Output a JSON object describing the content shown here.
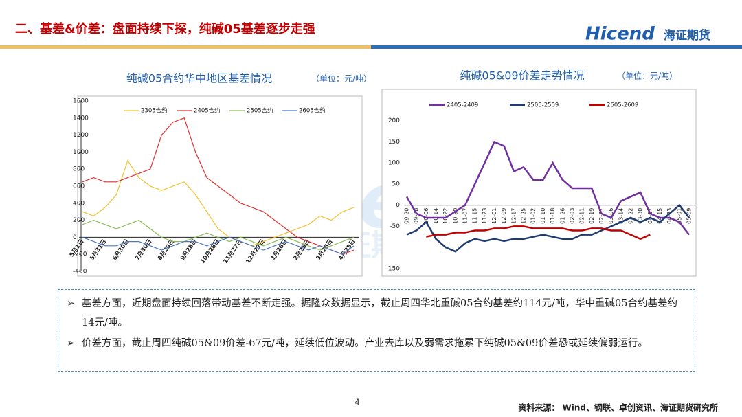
{
  "header": {
    "title": "二、基差&价差：盘面持续下探，纯碱05基差逐步走强",
    "logo": "Hicend",
    "logo_cn": "海证期货"
  },
  "chart_data": [
    {
      "type": "line",
      "title": "纯碱05合约华中地区基差情况",
      "unit": "（单位：元/吨）",
      "categories": [
        "5月1日",
        null,
        "5月31日",
        null,
        "6月30日",
        null,
        "7月30日",
        null,
        "8月29日",
        null,
        "9月28日",
        null,
        "10月28日",
        null,
        "11月27日",
        null,
        "12月27日",
        null,
        "1月26日",
        null,
        "2月25日",
        null,
        "3月26日",
        null,
        "4月25日"
      ],
      "ylim": [
        -400,
        1600
      ],
      "yticks": [
        -400,
        -200,
        0,
        200,
        400,
        600,
        800,
        1000,
        1200,
        1400,
        1600
      ],
      "series": [
        {
          "name": "2305合约",
          "color": "#f2c12e",
          "values": [
            300,
            250,
            350,
            500,
            900,
            700,
            600,
            550,
            600,
            650,
            500,
            300,
            100,
            0,
            -50,
            -100,
            -50,
            0,
            50,
            100,
            150,
            250,
            200,
            300,
            350
          ]
        },
        {
          "name": "2405合约",
          "color": "#e03030",
          "values": [
            650,
            700,
            650,
            650,
            700,
            750,
            800,
            1200,
            1350,
            1400,
            1000,
            700,
            600,
            500,
            400,
            350,
            300,
            200,
            100,
            0,
            -50,
            -100,
            -150,
            -200,
            -150
          ]
        },
        {
          "name": "2505合约",
          "color": "#8dbb5a",
          "values": [
            150,
            200,
            150,
            100,
            150,
            200,
            100,
            0,
            -50,
            -50,
            0,
            50,
            0,
            -50,
            0,
            -50,
            -100,
            -50,
            0,
            -50,
            -100,
            -150,
            -100,
            -50,
            0
          ]
        },
        {
          "name": "2605合约",
          "color": "#4a78c2",
          "values": [
            0,
            -50,
            -100,
            -100,
            -50,
            -50,
            -100,
            -150,
            -100,
            -50,
            -50,
            -100,
            -50,
            0,
            -50,
            -100,
            -150,
            -100,
            -50,
            -100,
            -150,
            -100,
            -150,
            -200,
            -100
          ]
        }
      ]
    },
    {
      "type": "line",
      "title": "纯碱05&09价差走势情况",
      "unit": "（单位：元/吨）",
      "categories": [
        "09-20",
        "09-28",
        "10-06",
        "10-14",
        "10-22",
        "10-30",
        "11-07",
        "11-15",
        "11-23",
        "12-01",
        "12-09",
        "12-17",
        "12-25",
        "01-02",
        "01-10",
        "01-18",
        "01-26",
        "02-03",
        "02-11",
        "02-19",
        "02-27",
        "03-06",
        "03-14",
        "03-22",
        "03-30",
        "04-07",
        "04-15",
        "04-23",
        "05-01",
        "05-09"
      ],
      "ylim": [
        -165,
        250
      ],
      "yticks": [
        -150,
        -50,
        0,
        50,
        100,
        150,
        200
      ],
      "series": [
        {
          "name": "2405-2409",
          "color": "#7030a0",
          "values": [
            20,
            -20,
            -30,
            -30,
            -30,
            -15,
            0,
            50,
            100,
            150,
            140,
            80,
            90,
            60,
            60,
            100,
            60,
            40,
            40,
            40,
            -20,
            -30,
            10,
            20,
            30,
            -20,
            -30,
            -30,
            -40,
            -70
          ]
        },
        {
          "name": "2505-2509",
          "color": "#1f3b70",
          "values": [
            -70,
            -60,
            -40,
            -80,
            -100,
            -110,
            -90,
            -80,
            -85,
            -80,
            -85,
            -80,
            -80,
            -75,
            -70,
            -75,
            -80,
            -80,
            -70,
            -70,
            -60,
            -50,
            -40,
            -30,
            -40,
            -30,
            -40,
            -20,
            0,
            -30
          ]
        },
        {
          "name": "2605-2609",
          "color": "#c00000",
          "values": [
            null,
            null,
            -75,
            -70,
            -70,
            -65,
            -65,
            -60,
            -60,
            -55,
            -55,
            -50,
            -50,
            -55,
            -55,
            -55,
            -55,
            -60,
            -60,
            -55,
            -55,
            -60,
            -60,
            -70,
            -80,
            -70,
            null,
            null,
            null,
            null
          ]
        }
      ]
    }
  ],
  "bullets": [
    "基差方面，近期盘面持续回落带动基差不断走强。据隆众数据显示，截止周四华北重碱05合约基差约114元/吨，华中重碱05合约基差约14元/吨。",
    "价差方面，截止周四纯碱05&09价差-67元/吨，延续低位波动。产业去库以及弱需求拖累下纯碱05&09价差恐或延续偏弱运行。"
  ],
  "footer": {
    "page": "4",
    "source": "资料来源： Wind、钢联、卓创资讯、海证期货研究所"
  }
}
